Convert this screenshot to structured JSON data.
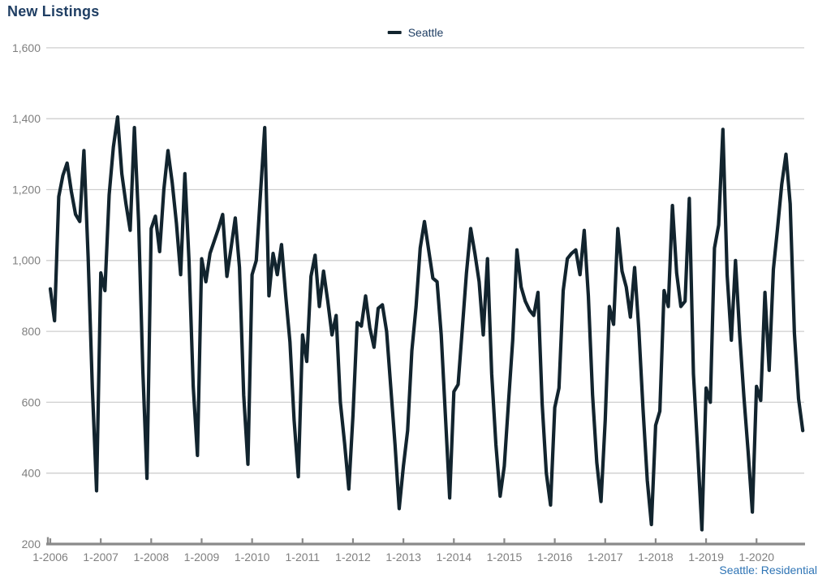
{
  "page": {
    "title": "New Listings",
    "footnote": "Seattle: Residential"
  },
  "legend": {
    "label": "Seattle"
  },
  "colors": {
    "title": "#1f3e63",
    "legend_text": "#1f3e63",
    "footnote": "#2e74b5",
    "line": "#12242e",
    "grid": "#cfcfcf",
    "axis": "#8a8a8a",
    "tick_label": "#7f7f7f",
    "background": "#ffffff"
  },
  "chart_data": {
    "type": "line",
    "title": "New Listings",
    "footnote": "Seattle: Residential",
    "grid": "horizontal",
    "legend_position": "top-center",
    "ylim": [
      200,
      1600
    ],
    "y_ticks": [
      200,
      400,
      600,
      800,
      1000,
      1200,
      1400,
      1600
    ],
    "x_tick_labels": [
      "1-2006",
      "1-2007",
      "1-2008",
      "1-2009",
      "1-2010",
      "1-2011",
      "1-2012",
      "1-2013",
      "1-2014",
      "1-2015",
      "1-2016",
      "1-2017",
      "1-2018",
      "1-2019",
      "1-2020"
    ],
    "x_start": "1-2006",
    "x_end": "12-2020",
    "frequency": "monthly",
    "series": [
      {
        "name": "Seattle",
        "values": [
          920,
          830,
          1180,
          1240,
          1275,
          1195,
          1130,
          1110,
          1310,
          1010,
          640,
          350,
          965,
          915,
          1185,
          1320,
          1405,
          1245,
          1160,
          1085,
          1375,
          1110,
          690,
          385,
          1090,
          1125,
          1025,
          1200,
          1310,
          1220,
          1105,
          960,
          1245,
          1000,
          645,
          450,
          1005,
          940,
          1020,
          1055,
          1090,
          1130,
          955,
          1035,
          1120,
          980,
          620,
          425,
          960,
          1000,
          1190,
          1375,
          900,
          1020,
          960,
          1045,
          900,
          770,
          550,
          390,
          790,
          715,
          955,
          1015,
          870,
          970,
          885,
          790,
          845,
          600,
          485,
          355,
          565,
          825,
          815,
          900,
          810,
          755,
          865,
          875,
          800,
          640,
          480,
          300,
          420,
          520,
          745,
          870,
          1035,
          1110,
          1030,
          950,
          940,
          790,
          560,
          330,
          630,
          650,
          805,
          965,
          1090,
          1020,
          940,
          790,
          1005,
          680,
          480,
          335,
          420,
          600,
          775,
          1030,
          925,
          885,
          860,
          845,
          910,
          595,
          400,
          310,
          585,
          640,
          915,
          1005,
          1020,
          1030,
          960,
          1085,
          900,
          620,
          430,
          320,
          550,
          870,
          820,
          1090,
          970,
          925,
          840,
          980,
          805,
          580,
          380,
          255,
          535,
          575,
          915,
          870,
          1155,
          965,
          870,
          885,
          1175,
          680,
          465,
          240,
          640,
          600,
          1035,
          1100,
          1370,
          960,
          775,
          1000,
          790,
          615,
          460,
          290,
          645,
          605,
          910,
          690,
          975,
          1090,
          1215,
          1300,
          1160,
          795,
          610,
          520
        ]
      }
    ]
  }
}
